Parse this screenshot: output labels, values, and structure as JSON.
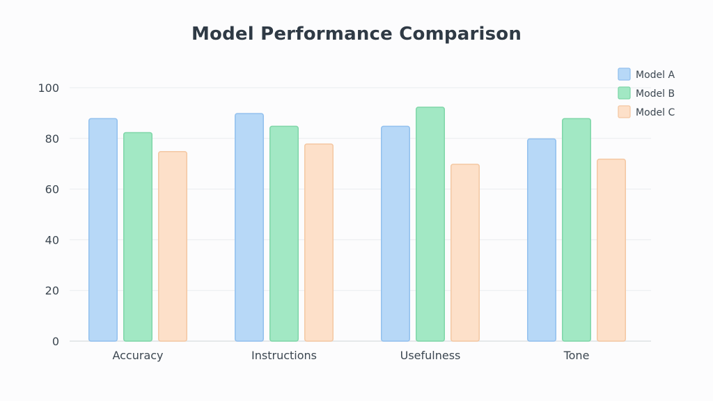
{
  "chart_data": {
    "type": "bar",
    "title": "Model Performance Comparison",
    "categories": [
      "Accuracy",
      "Instructions",
      "Usefulness",
      "Tone"
    ],
    "series": [
      {
        "name": "Model A",
        "values": [
          88,
          90,
          85,
          80
        ],
        "fill": "#b7d8f7",
        "stroke": "#92c0ee"
      },
      {
        "name": "Model B",
        "values": [
          82.5,
          85,
          92.5,
          88
        ],
        "fill": "#a2e8c4",
        "stroke": "#7fd6a8"
      },
      {
        "name": "Model C",
        "values": [
          75,
          78,
          70,
          72
        ],
        "fill": "#fde0c9",
        "stroke": "#f4c7a2"
      }
    ],
    "yticks": [
      "0",
      "20",
      "40",
      "60",
      "80",
      "100"
    ],
    "ylim": [
      0,
      100
    ],
    "grid": true,
    "legend_position": "top-right",
    "colors": {
      "grid": "#e9ecef",
      "axis": "#d7dce0",
      "text": "#3b4650",
      "title": "#2f3a45"
    }
  }
}
